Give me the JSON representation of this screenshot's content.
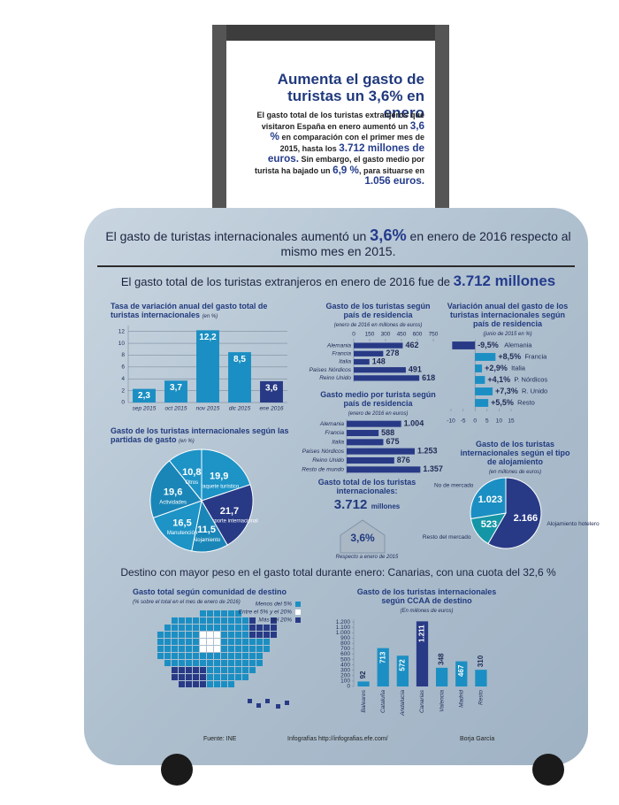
{
  "header": {
    "title": "Aumenta el gasto de turistas un 3,6% en enero",
    "paragraph": [
      {
        "text": "El gasto total de los turistas extranjeros que visitaron España en enero aumentó un ",
        "highlight": false
      },
      {
        "text": "3,6 %",
        "highlight": true
      },
      {
        "text": " en comparación con el primer mes de 2015, hasta los ",
        "highlight": false
      },
      {
        "text": "3.712 millones de euros.",
        "highlight": true
      },
      {
        "text": " Sin embargo, el gasto medio por turista ha bajado un ",
        "highlight": false
      },
      {
        "text": "6,9 %",
        "highlight": true
      },
      {
        "text": ", para situarse en ",
        "highlight": false
      },
      {
        "text": "1.056 euros.",
        "highlight": true
      }
    ]
  },
  "banners": [
    [
      {
        "text": "El gasto de turistas internacionales aumentó un ",
        "highlight": false
      },
      {
        "text": "3,6%",
        "highlight": true
      },
      {
        "text": " en enero de 2016 respecto al mismo mes en 2015.",
        "highlight": false
      }
    ],
    [
      {
        "text": "El gasto total de los turistas extranjeros en enero de 2016 fue de ",
        "highlight": false
      },
      {
        "text": "3.712 millones",
        "highlight": true
      }
    ],
    [
      {
        "text": "Destino con mayor peso en el gasto total durante enero: Canarias, con una cuota del 32,6 %",
        "highlight": false
      }
    ]
  ],
  "chart_data": [
    {
      "type": "bar",
      "title": "Tasa de variación anual del gasto total de turistas internacionales",
      "subtitle": "(en %)",
      "categories": [
        "sep 2015",
        "oct 2015",
        "nov 2015",
        "dic 2015",
        "ene 2016"
      ],
      "values": [
        2.3,
        3.7,
        12.2,
        8.5,
        3.6
      ],
      "value_labels": [
        "2,3",
        "3,7",
        "12,2",
        "8,5",
        "3,6"
      ],
      "colors": [
        "#1b8fc3",
        "#1b8fc3",
        "#1b8fc3",
        "#1b8fc3",
        "#283a86"
      ],
      "ylim": [
        0,
        13
      ],
      "yticks": [
        0,
        2,
        4,
        6,
        8,
        10,
        12
      ],
      "grid": true
    },
    {
      "type": "hbar",
      "title": "Gasto de los turistas según país de residencia",
      "subtitle": "(enero de 2016 en millones de euros)",
      "categories": [
        "Alemania",
        "Francia",
        "Italia",
        "Países Nórdicos",
        "Reino Unido"
      ],
      "values": [
        462,
        278,
        148,
        491,
        618
      ],
      "colors": [
        "#283a86",
        "#283a86",
        "#283a86",
        "#283a86",
        "#283a86"
      ],
      "xlim": [
        0,
        750
      ],
      "xticks": [
        0,
        150,
        300,
        450,
        600,
        750
      ]
    },
    {
      "type": "hbar",
      "title": "Variación anual del gasto de los turistas internacionales según país de residencia",
      "subtitle": "(junio de 2015 en %)",
      "categories": [
        "Alemania",
        "Francia",
        "Italia",
        "P. Nórdicos",
        "R. Unido",
        "Resto"
      ],
      "values": [
        -9.5,
        8.5,
        2.9,
        4.1,
        7.3,
        5.5
      ],
      "value_labels": [
        "-9,5%",
        "+8,5%",
        "+2,9%",
        "+4,1%",
        "+7,3%",
        "+5,5%"
      ],
      "colors": [
        "#283a86",
        "#1b8fc3",
        "#1b8fc3",
        "#1b8fc3",
        "#1b8fc3",
        "#1b8fc3"
      ],
      "xlim": [
        -10,
        15
      ],
      "xticks": [
        -10,
        -5,
        0,
        5,
        10,
        15
      ]
    },
    {
      "type": "hbar",
      "title": "Gasto medio por turista según país de residencia",
      "subtitle": "(enero de 2016 en euros)",
      "categories": [
        "Alemania",
        "Francia",
        "Italia",
        "Países Nórdicos",
        "Reino Unido",
        "Resto de mundo"
      ],
      "values": [
        1004,
        588,
        675,
        1253,
        876,
        1357
      ],
      "value_labels": [
        "1.004",
        "588",
        "675",
        "1.253",
        "876",
        "1.357"
      ],
      "colors": [
        "#283a86",
        "#283a86",
        "#283a86",
        "#283a86",
        "#283a86",
        "#283a86"
      ],
      "xlim": [
        0,
        1400
      ]
    },
    {
      "type": "pie",
      "title": "Gasto de los turistas internacionales según las partidas de gasto",
      "subtitle": "(en %)",
      "categories": [
        "Paquete turístico",
        "Transporte internacional",
        "Alojamiento",
        "Manutención",
        "Actividades",
        "Otros"
      ],
      "values": [
        19.9,
        21.7,
        11.5,
        16.5,
        19.6,
        10.8
      ],
      "value_labels": [
        "19,9",
        "21,7",
        "11,5",
        "16,5",
        "19,6",
        "10,8"
      ],
      "colors": [
        "#1d93c6",
        "#283a86",
        "#1a86b8",
        "#1d93c6",
        "#1a86b8",
        "#1d93c6"
      ]
    },
    {
      "type": "pie",
      "title": "Gasto de los turistas internacionales según el tipo de alojamiento",
      "subtitle": "(en millones de euros)",
      "categories": [
        "Alojamiento hotelero",
        "Resto del mercado",
        "No de mercado"
      ],
      "values": [
        2166,
        523,
        1023
      ],
      "value_labels": [
        "2.166",
        "523",
        "1.023"
      ],
      "colors": [
        "#283a86",
        "#1596a6",
        "#1b8fc3"
      ]
    },
    {
      "type": "bar",
      "title": "Gasto de los turistas internacionales según CCAA de destino",
      "subtitle": "(En millones de euros)",
      "categories": [
        "Baleares",
        "Cataluña",
        "Andalucía",
        "Canarias",
        "Valencia",
        "Madrid",
        "Resto"
      ],
      "values": [
        92,
        713,
        572,
        1211,
        348,
        467,
        310
      ],
      "value_labels": [
        "92",
        "713",
        "572",
        "1.211",
        "348",
        "467",
        "310"
      ],
      "colors": [
        "#1b8fc3",
        "#1b8fc3",
        "#1b8fc3",
        "#283a86",
        "#1b8fc3",
        "#1b8fc3",
        "#1b8fc3"
      ],
      "ylim": [
        0,
        1250
      ],
      "yticks": [
        0,
        100,
        200,
        300,
        400,
        500,
        600,
        700,
        800,
        900,
        {
          "value": 1000,
          "label": "1.000"
        },
        {
          "value": 1100,
          "label": "1.100"
        },
        {
          "value": 1200,
          "label": "1.200"
        }
      ],
      "grid": false
    }
  ],
  "kpi": {
    "title": "Gasto total de los turistas internacionales:",
    "value": "3.712",
    "unit": "millones",
    "change": "3,6%",
    "note": "Respecto a enero de 2015"
  },
  "map": {
    "title": "Gasto total según comunidad de destino",
    "subtitle": "(% sobre el total en el mes de enero de 2016)",
    "legend": [
      {
        "label": "Menos del 5%",
        "color": "#1b8fc3"
      },
      {
        "label": "Entre el 5% y el 20%",
        "color": "#ffffff"
      },
      {
        "label": "Más del 20%",
        "color": "#283a86"
      }
    ]
  },
  "footer": {
    "source": "Fuente: INE",
    "site": "Infografías http://infografias.efe.com/",
    "author": "Borja García"
  }
}
